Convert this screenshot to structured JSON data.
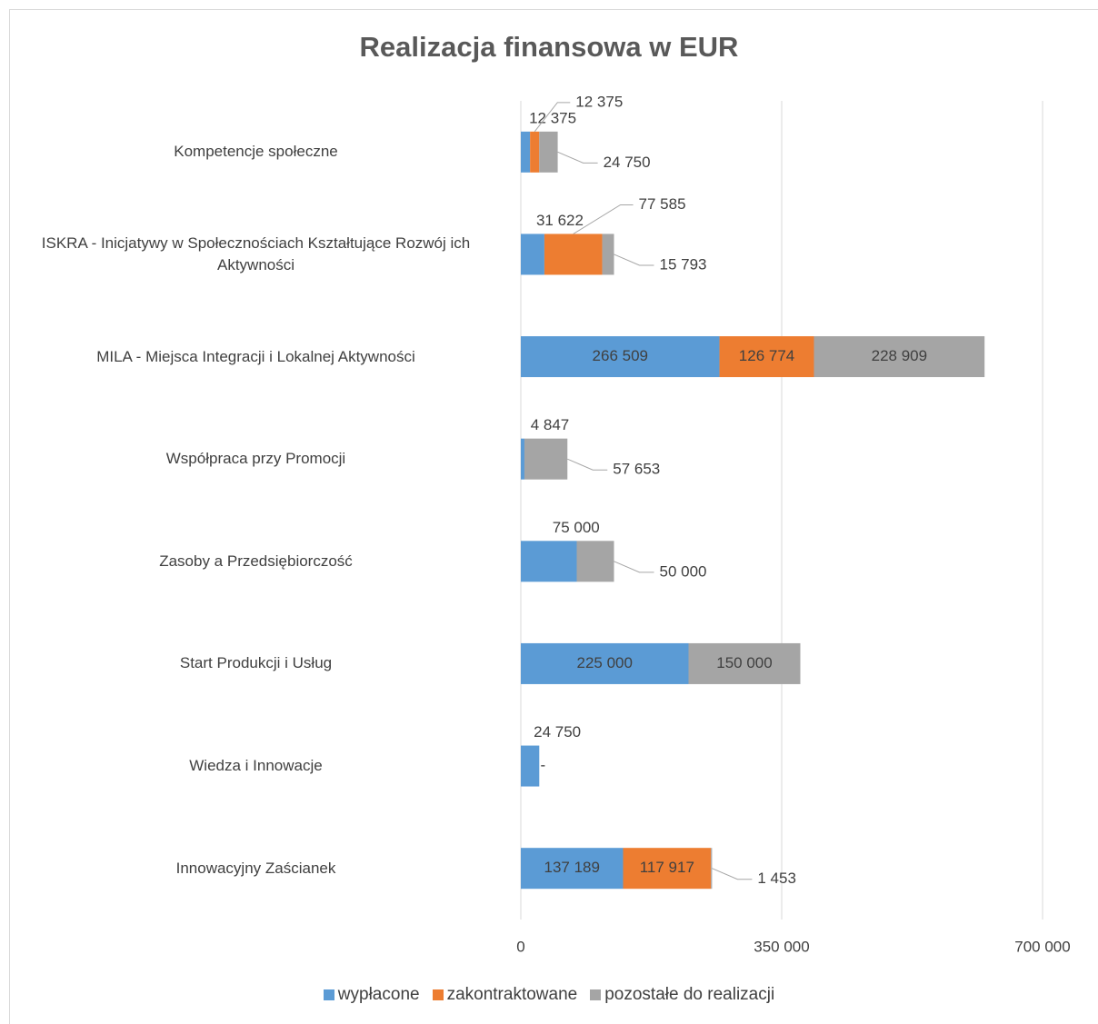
{
  "chart_data": {
    "type": "bar",
    "orientation": "horizontal",
    "stacked": true,
    "title": "Realizacja finansowa w EUR",
    "categories": [
      "Kompetencje społeczne",
      "ISKRA - Inicjatywy w Społecznościach Kształtujące Rozwój ich Aktywności",
      "MILA - Miejsca Integracji i Lokalnej Aktywności",
      "Współpraca przy Promocji",
      "Zasoby a Przedsiębiorczość",
      "Start Produkcji i Usług",
      "Wiedza i Innowacje",
      "Innowacyjny Zaścianek"
    ],
    "series": [
      {
        "name": "wypłacone",
        "color": "#5b9bd5",
        "values": [
          12375,
          31622,
          266509,
          4847,
          75000,
          225000,
          24750,
          137189
        ],
        "value_labels": [
          "12 375",
          "31 622",
          "266 509",
          "4 847",
          "75 000",
          "225 000",
          "24 750",
          "137 189"
        ]
      },
      {
        "name": "zakontraktowane",
        "color": "#ed7d31",
        "values": [
          12375,
          77585,
          126774,
          0,
          0,
          0,
          0,
          117917
        ],
        "value_labels": [
          "12 375",
          "77 585",
          "126 774",
          "-",
          "-",
          "-",
          "-",
          "117 917"
        ]
      },
      {
        "name": "pozostałe do realizacji",
        "color": "#a5a5a5",
        "values": [
          24750,
          15793,
          228909,
          57653,
          50000,
          150000,
          null,
          1453
        ],
        "value_labels": [
          "24 750",
          "15 793",
          "228 909",
          "57 653",
          "50 000",
          "150 000",
          null,
          "1 453"
        ]
      }
    ],
    "xlim": [
      0,
      700000
    ],
    "xticks": [
      0,
      {
        "value": 350000,
        "label": "350 000"
      },
      {
        "value": 700000,
        "label": "700 000"
      }
    ],
    "grid": true,
    "legend": "bottom"
  }
}
